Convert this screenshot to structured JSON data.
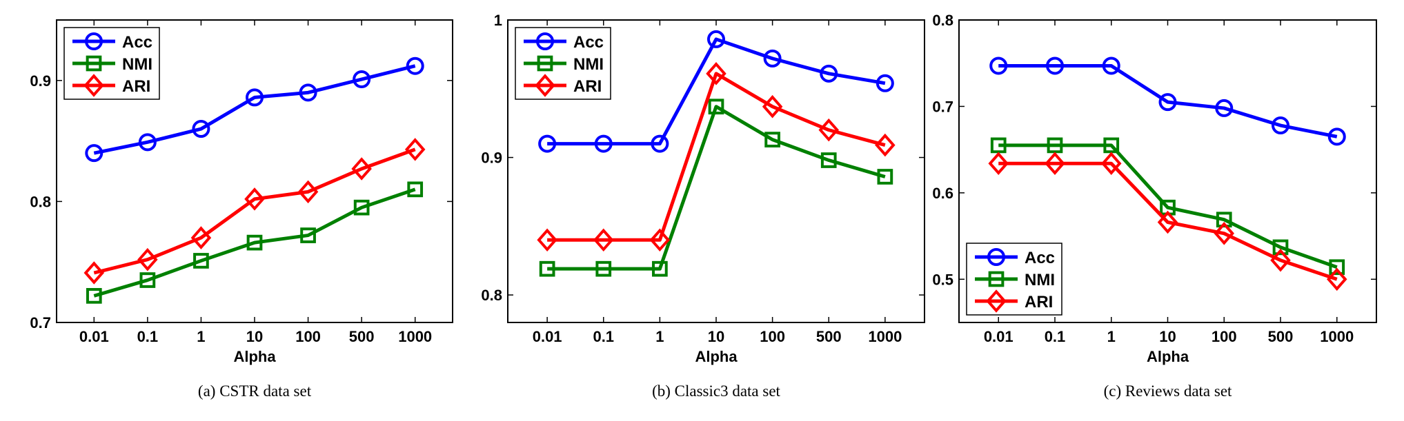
{
  "chart_data": [
    {
      "type": "line",
      "caption": "(a) CSTR data set",
      "title": "",
      "xlabel": "Alpha",
      "ylabel": "",
      "categories": [
        "0.01",
        "0.1",
        "1",
        "10",
        "100",
        "500",
        "1000"
      ],
      "ylim": [
        0.7,
        0.95
      ],
      "yticks": [
        0.7,
        0.8,
        0.9
      ],
      "ytick_labels": [
        "0.7",
        "0.8",
        "0.9"
      ],
      "legend_position": "top-left",
      "series": [
        {
          "name": "Acc",
          "color": "#0000ff",
          "marker": "circle",
          "values": [
            0.84,
            0.849,
            0.86,
            0.886,
            0.89,
            0.901,
            0.912
          ]
        },
        {
          "name": "NMI",
          "color": "#008000",
          "marker": "square",
          "values": [
            0.722,
            0.735,
            0.751,
            0.766,
            0.772,
            0.795,
            0.81
          ]
        },
        {
          "name": "ARI",
          "color": "#ff0000",
          "marker": "diamond",
          "values": [
            0.741,
            0.752,
            0.77,
            0.802,
            0.808,
            0.827,
            0.843
          ]
        }
      ]
    },
    {
      "type": "line",
      "caption": "(b) Classic3 data set",
      "title": "",
      "xlabel": "Alpha",
      "ylabel": "",
      "categories": [
        "0.01",
        "0.1",
        "1",
        "10",
        "100",
        "500",
        "1000"
      ],
      "ylim": [
        0.78,
        1.0
      ],
      "yticks": [
        0.8,
        0.9,
        1.0
      ],
      "ytick_labels": [
        "0.8",
        "0.9",
        "1"
      ],
      "legend_position": "top-left",
      "series": [
        {
          "name": "Acc",
          "color": "#0000ff",
          "marker": "circle",
          "values": [
            0.91,
            0.91,
            0.91,
            0.986,
            0.972,
            0.961,
            0.954
          ]
        },
        {
          "name": "NMI",
          "color": "#008000",
          "marker": "square",
          "values": [
            0.819,
            0.819,
            0.819,
            0.937,
            0.913,
            0.898,
            0.886
          ]
        },
        {
          "name": "ARI",
          "color": "#ff0000",
          "marker": "diamond",
          "values": [
            0.84,
            0.84,
            0.84,
            0.961,
            0.937,
            0.92,
            0.909
          ]
        }
      ]
    },
    {
      "type": "line",
      "caption": "(c) Reviews data set",
      "title": "",
      "xlabel": "Alpha",
      "ylabel": "",
      "categories": [
        "0.01",
        "0.1",
        "1",
        "10",
        "100",
        "500",
        "1000"
      ],
      "ylim": [
        0.45,
        0.8
      ],
      "yticks": [
        0.5,
        0.6,
        0.7,
        0.8
      ],
      "ytick_labels": [
        "0.5",
        "0.6",
        "0.7",
        "0.8"
      ],
      "legend_position": "bottom-left",
      "series": [
        {
          "name": "Acc",
          "color": "#0000ff",
          "marker": "circle",
          "values": [
            0.747,
            0.747,
            0.747,
            0.705,
            0.698,
            0.678,
            0.665
          ]
        },
        {
          "name": "NMI",
          "color": "#008000",
          "marker": "square",
          "values": [
            0.655,
            0.655,
            0.655,
            0.583,
            0.569,
            0.537,
            0.514
          ]
        },
        {
          "name": "ARI",
          "color": "#ff0000",
          "marker": "diamond",
          "values": [
            0.634,
            0.634,
            0.634,
            0.566,
            0.553,
            0.522,
            0.5
          ]
        }
      ]
    }
  ]
}
